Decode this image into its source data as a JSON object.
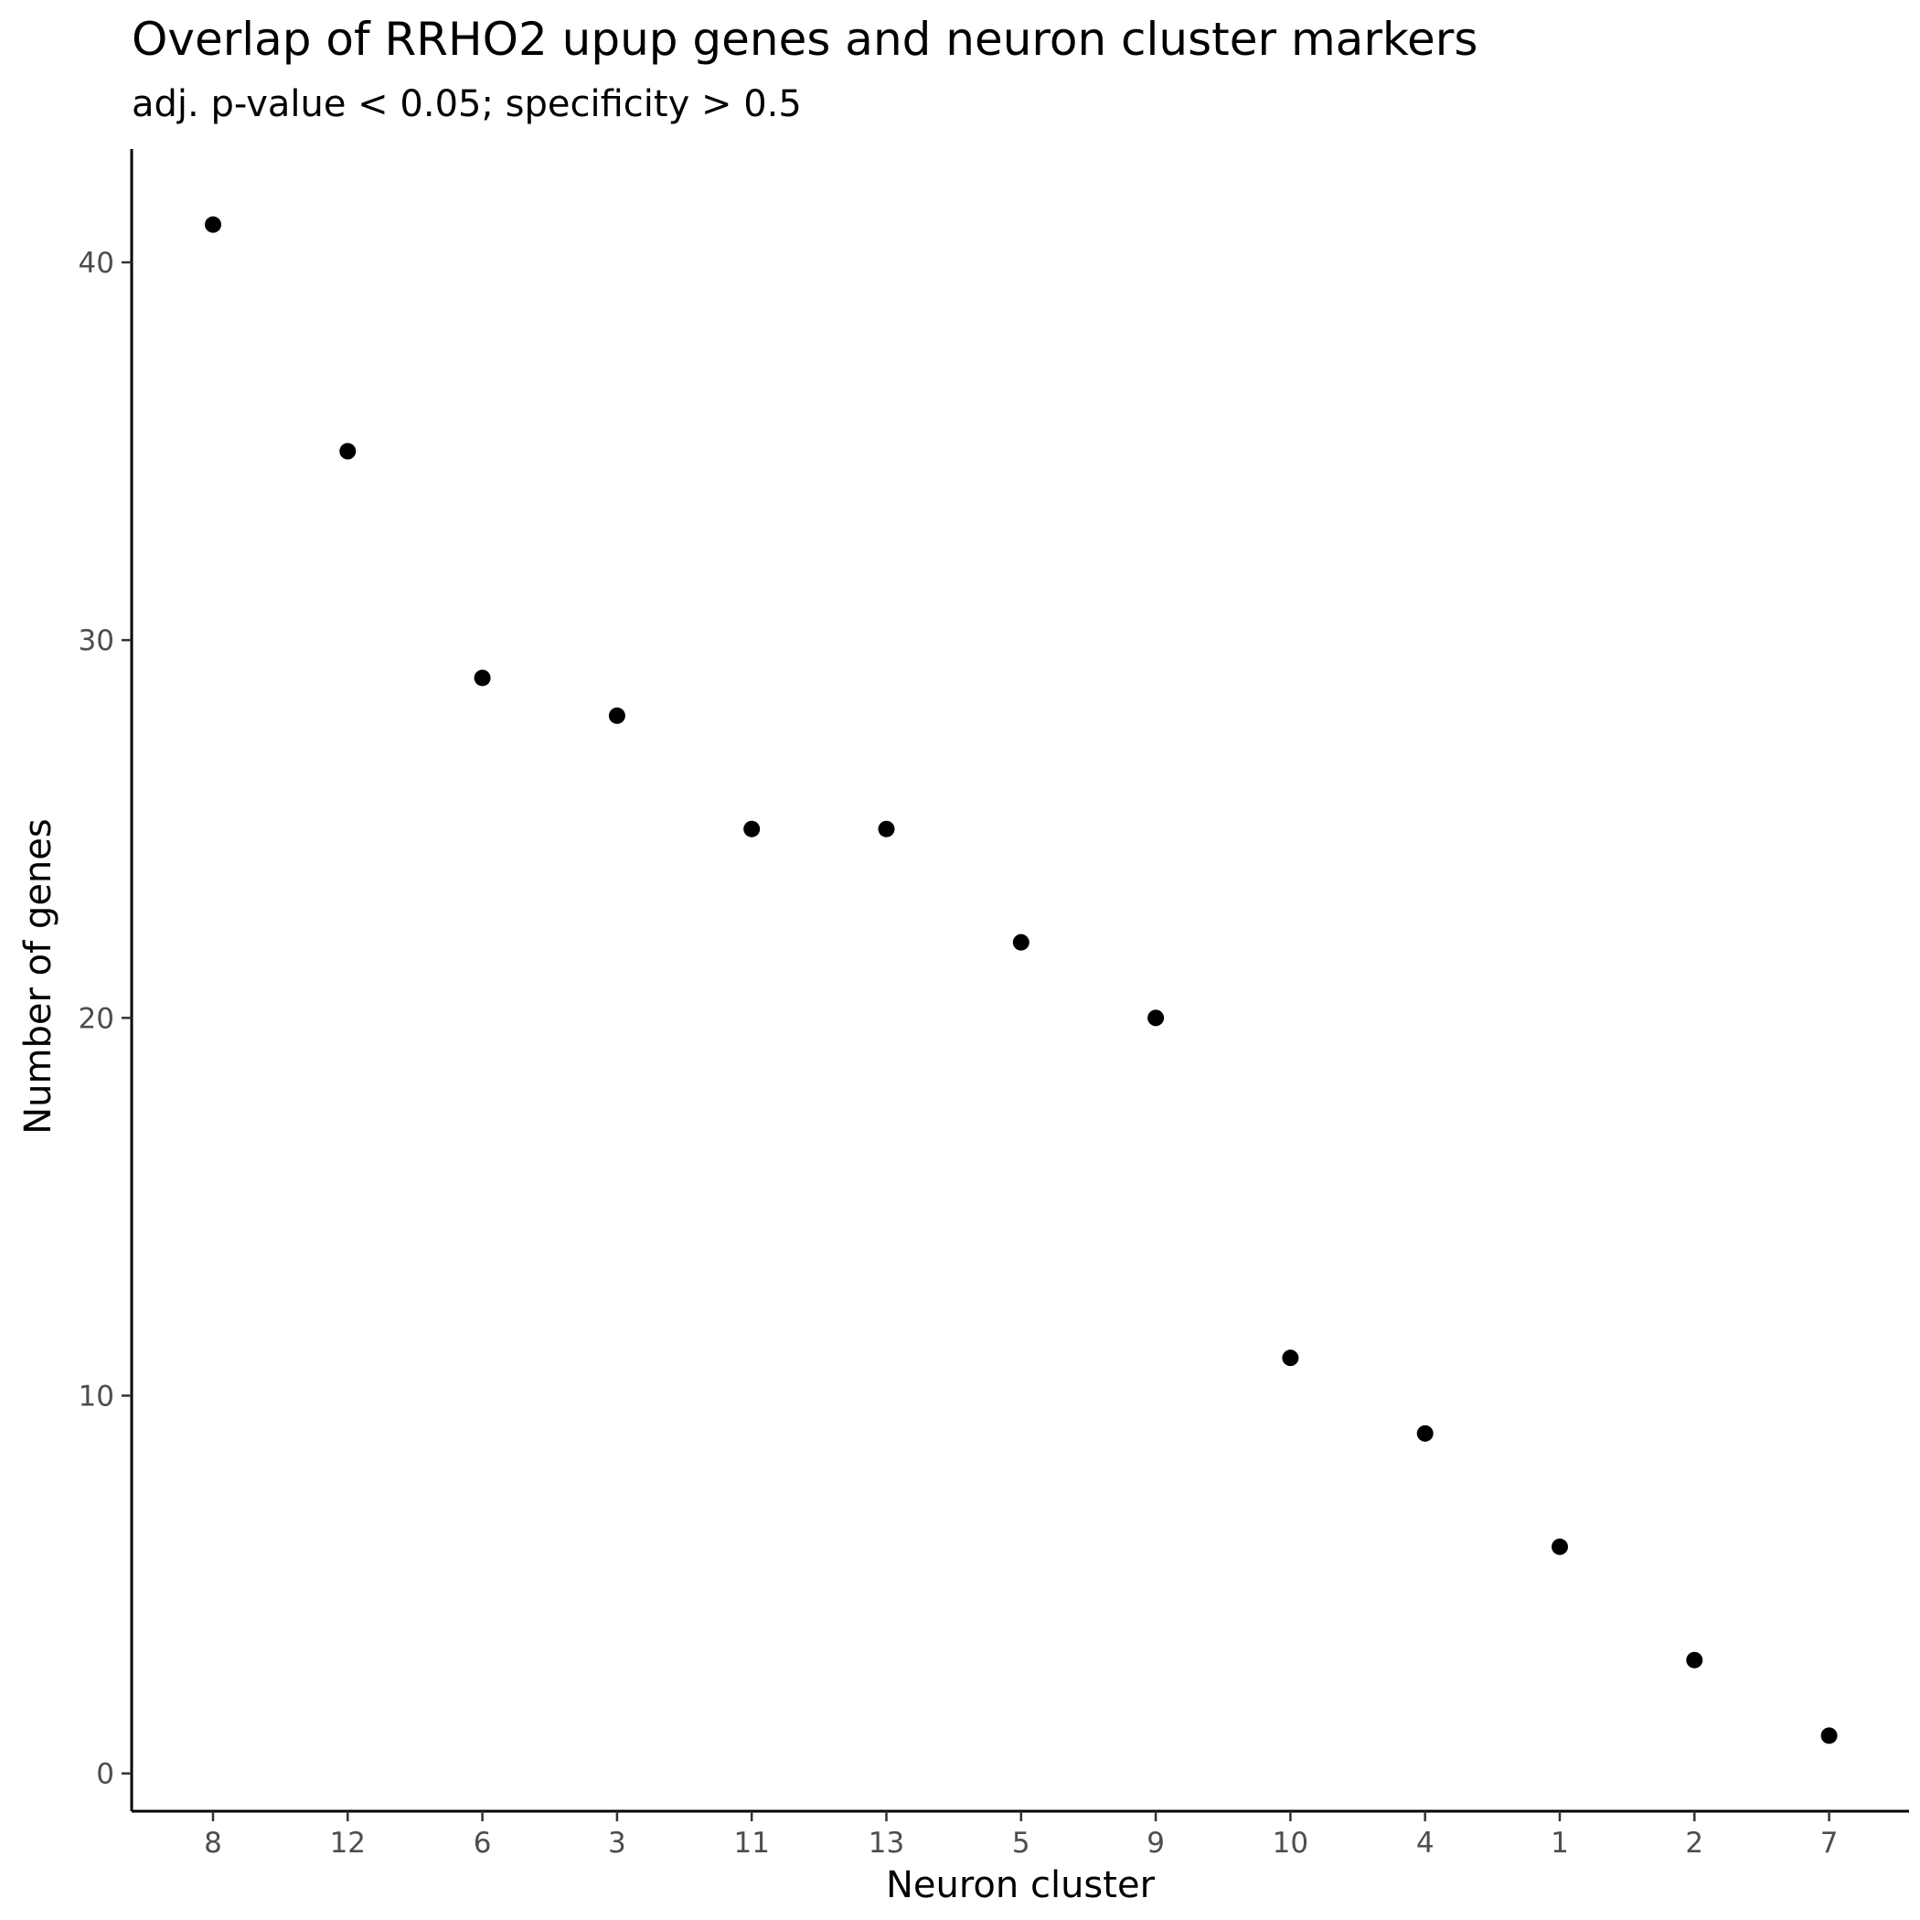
{
  "chart_data": {
    "type": "scatter",
    "title": "Overlap of RRHO2 upup genes and neuron cluster markers",
    "subtitle": "adj. p-value < 0.05; specificity > 0.5",
    "xlabel": "Neuron cluster",
    "ylabel": "Number of genes",
    "categories": [
      "8",
      "12",
      "6",
      "3",
      "11",
      "13",
      "5",
      "9",
      "10",
      "4",
      "1",
      "2",
      "7"
    ],
    "values": [
      41,
      35,
      29,
      28,
      25,
      25,
      22,
      20,
      11,
      9,
      6,
      3,
      1
    ],
    "yticks": [
      0,
      10,
      20,
      30,
      40
    ],
    "ylim": [
      -1,
      43
    ],
    "grid": false,
    "legend": "none",
    "point_color": "#000000"
  }
}
